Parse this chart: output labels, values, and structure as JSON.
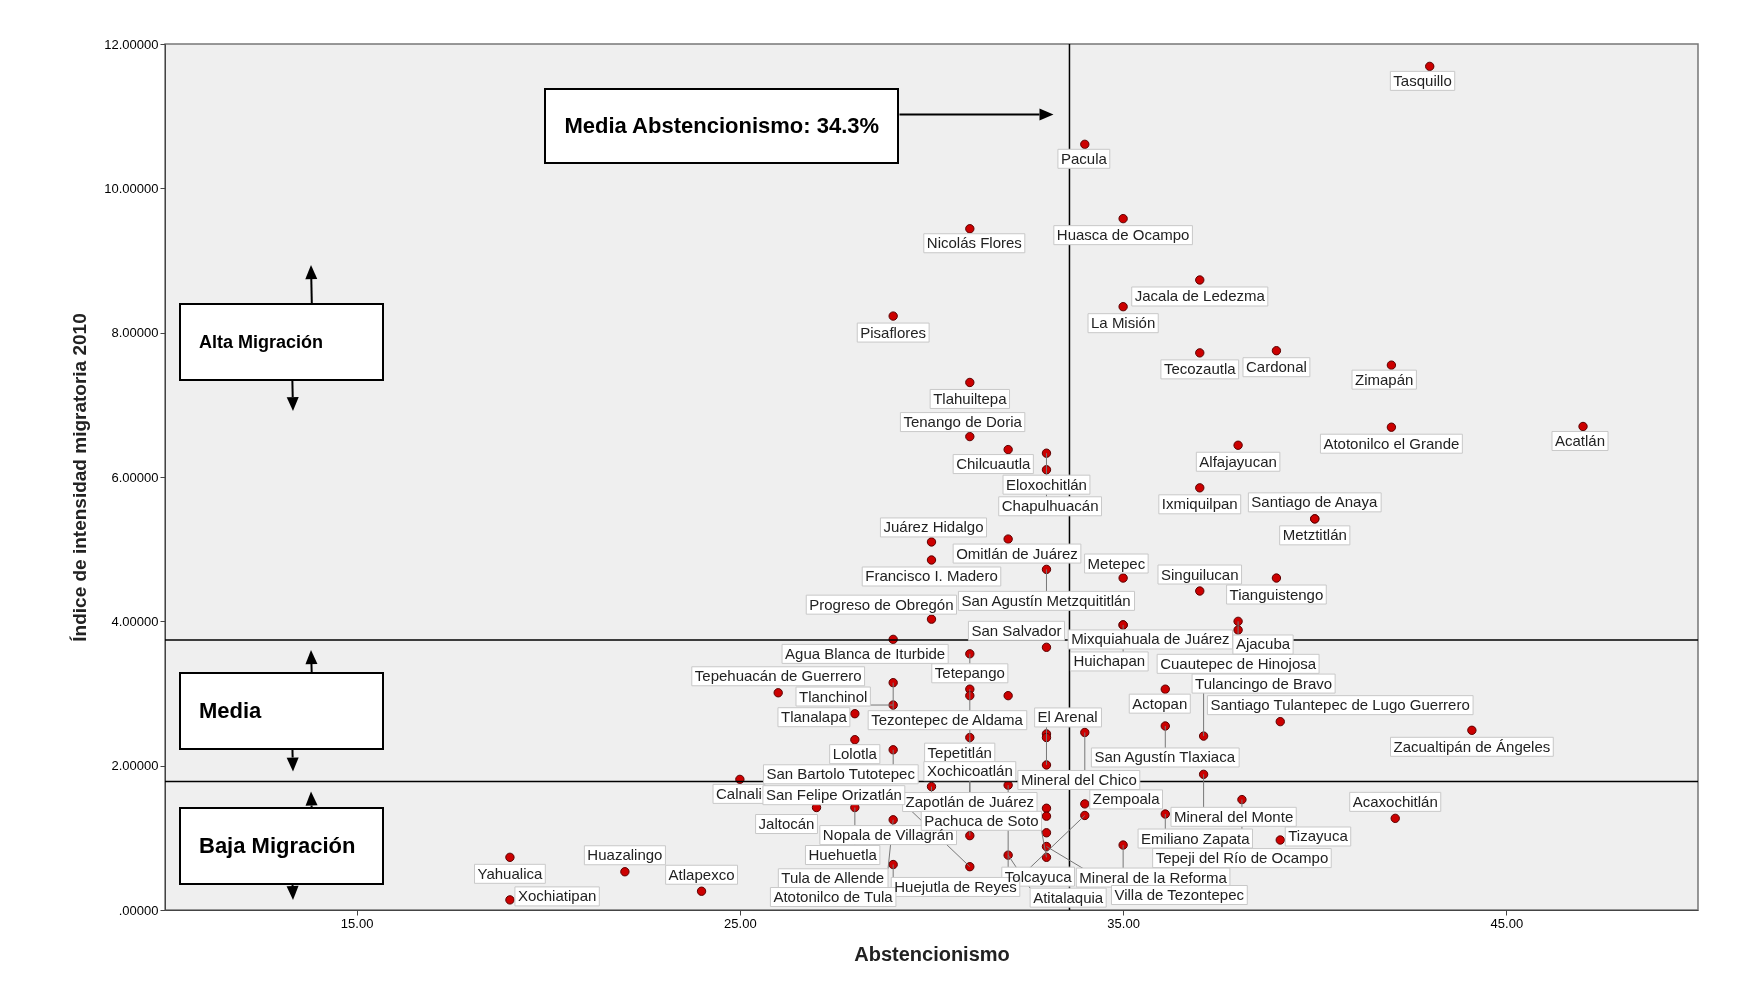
{
  "chart_data": {
    "type": "scatter",
    "xlabel": "Abstencionismo",
    "ylabel": "Índice de intensidad migratoria 2010",
    "xlim": [
      10,
      50
    ],
    "ylim": [
      0,
      12
    ],
    "marker": "circle",
    "xticks": [
      {
        "value": 15,
        "label": "15.00"
      },
      {
        "value": 25,
        "label": "25.00"
      },
      {
        "value": 35,
        "label": "35.00"
      },
      {
        "value": 45,
        "label": "45.00"
      }
    ],
    "yticks": [
      {
        "value": 0,
        "label": ".00000"
      },
      {
        "value": 2,
        "label": "2.00000"
      },
      {
        "value": 4,
        "label": "4.00000"
      },
      {
        "value": 6,
        "label": "6.00000"
      },
      {
        "value": 8,
        "label": "8.00000"
      },
      {
        "value": 10,
        "label": "10.00000"
      },
      {
        "value": 12,
        "label": "12.00000"
      }
    ],
    "series": [
      {
        "color": "#cc0000",
        "x": [
          43.0,
          34.0,
          35.0,
          31.0,
          37.0,
          35.0,
          29.0,
          37.0,
          39.0,
          42.0,
          31.0,
          47.0,
          42.0,
          31.0,
          32.0,
          33.0,
          33.0,
          38.0,
          37.0,
          40.0,
          40.0,
          32.0,
          30.0,
          30.0,
          33.0,
          35.0,
          37.0,
          39.0,
          30.0,
          35.0,
          35.0,
          38.0,
          38.0,
          29.0,
          33.0,
          31.0,
          29.0,
          31.0,
          31.0,
          32.0,
          26.0,
          29.0,
          28.0,
          28.0,
          29.0,
          31.0,
          33.0,
          33.0,
          34.0,
          36.1,
          36.1,
          33.0,
          30.0,
          32.0,
          25.0,
          37.1,
          37.1,
          39.1,
          44.1,
          34.0,
          34.0,
          36.1,
          38.1,
          39.1,
          35.0,
          42.1,
          28.0,
          27.0,
          29.0,
          31.0,
          29.0,
          32.0,
          31.0,
          33.0,
          33.0,
          33.0,
          33.0,
          33.0,
          19.0,
          19.0,
          22.0,
          24.0
        ],
        "values": [
          11.69,
          10.61,
          9.58,
          9.44,
          8.73,
          8.36,
          8.23,
          7.72,
          7.75,
          7.55,
          7.31,
          6.7,
          6.69,
          6.56,
          6.38,
          6.33,
          6.1,
          6.44,
          5.85,
          5.42,
          5.42,
          5.14,
          5.1,
          4.85,
          4.72,
          4.6,
          4.42,
          4.6,
          4.03,
          3.95,
          3.95,
          4.0,
          3.88,
          3.75,
          3.64,
          3.55,
          3.15,
          3.06,
          2.97,
          2.97,
          3.01,
          2.84,
          2.72,
          2.36,
          2.22,
          2.39,
          2.44,
          2.39,
          2.46,
          2.55,
          3.06,
          2.01,
          1.71,
          1.73,
          1.81,
          1.88,
          2.41,
          2.61,
          2.49,
          1.47,
          1.31,
          1.33,
          1.53,
          0.97,
          0.9,
          1.27,
          1.42,
          1.42,
          1.25,
          1.03,
          0.63,
          0.76,
          0.6,
          0.73,
          0.88,
          1.41,
          1.3,
          1.07,
          0.73,
          0.14,
          0.53,
          0.26
        ]
      }
    ],
    "ref_lines": [
      {
        "axis": "x",
        "value": 33.6
      },
      {
        "axis": "y",
        "value": 3.74
      },
      {
        "axis": "y",
        "value": 1.78
      }
    ],
    "annotations": [
      "Media Abstencionismo: 34.3%",
      "Alta Migración",
      "Media",
      "Baja Migración",
      {
        "text": "Tasquillo",
        "x": 43.0,
        "y": 11.69
      },
      {
        "text": "Pacula",
        "x": 34.0,
        "y": 10.61
      },
      {
        "text": "Huasca de Ocampo",
        "x": 35.0,
        "y": 9.58
      },
      {
        "text": "Nicolás Flores",
        "x": 31.0,
        "y": 9.44
      },
      {
        "text": "Jacala de Ledezma",
        "x": 37.0,
        "y": 8.73
      },
      {
        "text": "La Misión",
        "x": 35.0,
        "y": 8.36
      },
      {
        "text": "Pisaflores",
        "x": 29.0,
        "y": 8.23
      },
      {
        "text": "Tecozautla",
        "x": 37.0,
        "y": 7.72
      },
      {
        "text": "Cardonal",
        "x": 39.0,
        "y": 7.75
      },
      {
        "text": "Zimapán",
        "x": 42.0,
        "y": 7.55
      },
      {
        "text": "Tlahuiltepa",
        "x": 31.0,
        "y": 7.31
      },
      {
        "text": "Acatlán",
        "x": 47.0,
        "y": 6.7
      },
      {
        "text": "Atotonilco el Grande",
        "x": 42.0,
        "y": 6.69
      },
      {
        "text": "Tenango de Doria",
        "x": 31.0,
        "y": 6.56
      },
      {
        "text": "Eloxochitlán",
        "x": 33.0,
        "y": 6.33
      },
      {
        "text": "Chilcuautla",
        "x": 32.0,
        "y": 6.38
      },
      {
        "text": "Chapulhuacán",
        "x": 33.0,
        "y": 6.1
      },
      {
        "text": "Alfajayucan",
        "x": 38.0,
        "y": 6.44
      },
      {
        "text": "Ixmiquilpan",
        "x": 37.0,
        "y": 5.85
      },
      {
        "text": "Metztitlán",
        "x": 40.0,
        "y": 5.42
      },
      {
        "text": "Santiago de Anaya",
        "x": 40.0,
        "y": 5.42
      },
      {
        "text": "Omitlán de Juárez",
        "x": 32.0,
        "y": 5.14
      },
      {
        "text": "Juárez Hidalgo",
        "x": 30.0,
        "y": 5.1
      },
      {
        "text": "Francisco I. Madero",
        "x": 30.0,
        "y": 4.85
      },
      {
        "text": "San Agustín Metzquititlán",
        "x": 33.0,
        "y": 4.72
      },
      {
        "text": "Metepec",
        "x": 35.0,
        "y": 4.6
      },
      {
        "text": "Singuilucan",
        "x": 37.0,
        "y": 4.42
      },
      {
        "text": "Tianguistengo",
        "x": 39.0,
        "y": 4.6
      },
      {
        "text": "Progreso de Obregón",
        "x": 30.0,
        "y": 4.03
      },
      {
        "text": "Mixquiahuala de Juárez",
        "x": 35.0,
        "y": 3.95
      },
      {
        "text": "Huichapan",
        "x": 35.0,
        "y": 3.95
      },
      {
        "text": "Cuautepec de Hinojosa",
        "x": 38.0,
        "y": 4.0
      },
      {
        "text": "Ajacuba",
        "x": 38.0,
        "y": 3.88
      },
      {
        "text": "Agua Blanca de Iturbide",
        "x": 29.0,
        "y": 3.75
      },
      {
        "text": "San Salvador",
        "x": 33.0,
        "y": 3.64
      },
      {
        "text": "Tetepango",
        "x": 31.0,
        "y": 3.55
      },
      {
        "text": "Tezontepec de Aldama",
        "x": 29.0,
        "y": 3.15
      },
      {
        "text": "Tepetitlán",
        "x": 31.0,
        "y": 3.06
      },
      {
        "text": "Tepehuacán de Guerrero",
        "x": 26.0,
        "y": 3.01
      },
      {
        "text": "Tlanchinol",
        "x": 29.0,
        "y": 2.84
      },
      {
        "text": "Tlanalapa",
        "x": 28.0,
        "y": 2.72
      },
      {
        "text": "Lolotla",
        "x": 28.0,
        "y": 2.36
      },
      {
        "text": "San Bartolo Tutotepec",
        "x": 29.0,
        "y": 2.22
      },
      {
        "text": "Zapotlán de Juárez",
        "x": 31.0,
        "y": 2.39
      },
      {
        "text": "Actopan",
        "x": 36.1,
        "y": 3.06
      },
      {
        "text": "San Agustín Tlaxiaca",
        "x": 36.1,
        "y": 2.55
      },
      {
        "text": "Santiago Tulantepec de Lugo Guerrero",
        "x": 39.1,
        "y": 2.61
      },
      {
        "text": "Zacualtipán de Ángeles",
        "x": 44.1,
        "y": 2.49
      },
      {
        "text": "Tulancingo de Bravo",
        "x": 37.1,
        "y": 2.41
      },
      {
        "text": "Mineral del Chico",
        "x": 34.0,
        "y": 2.46
      },
      {
        "text": "El Arenal",
        "x": 33.0,
        "y": 2.01
      },
      {
        "text": "Tolcayuca",
        "x": 32.0,
        "y": 1.73
      },
      {
        "text": "Nopala de Villagrán",
        "x": 30.0,
        "y": 1.71
      },
      {
        "text": "Calnali",
        "x": 25.0,
        "y": 1.81
      },
      {
        "text": "Mineral del Monte",
        "x": 37.1,
        "y": 1.88
      },
      {
        "text": "Zempoala",
        "x": 34.0,
        "y": 1.47
      },
      {
        "text": "Tepeji del Río de Ocampo",
        "x": 38.1,
        "y": 1.53
      },
      {
        "text": "Emiliano Zapata",
        "x": 36.1,
        "y": 1.33
      },
      {
        "text": "Tizayuca",
        "x": 39.1,
        "y": 0.97
      },
      {
        "text": "Acaxochitlán",
        "x": 42.1,
        "y": 1.27
      },
      {
        "text": "Mineral de la Reforma",
        "x": 35.0,
        "y": 0.9
      },
      {
        "text": "Huejutla de Reyes",
        "x": 34.0,
        "y": 1.31
      },
      {
        "text": "Huehuetla",
        "x": 28.0,
        "y": 1.42
      },
      {
        "text": "Jaltocán",
        "x": 27.0,
        "y": 1.42
      },
      {
        "text": "Tula de Allende",
        "x": 29.0,
        "y": 1.25
      },
      {
        "text": "Xochicoatlán",
        "x": 31.0,
        "y": 1.03
      },
      {
        "text": "Atitalaquia",
        "x": 32.0,
        "y": 0.76
      },
      {
        "text": "Atotonilco de Tula",
        "x": 29.0,
        "y": 0.63
      },
      {
        "text": "Villa de Tezontepec",
        "x": 33.0,
        "y": 0.88
      },
      {
        "text": "Pachuca de Soto",
        "x": 33.0,
        "y": 0.73
      },
      {
        "text": "San Felipe Orizatlán",
        "x": 31.0,
        "y": 0.6
      },
      {
        "text": "Yahualica",
        "x": 19.0,
        "y": 0.73
      },
      {
        "text": "Xochiatipan",
        "x": 19.0,
        "y": 0.14
      },
      {
        "text": "Huazalingo",
        "x": 22.0,
        "y": 0.53
      },
      {
        "text": "Atlapexco",
        "x": 24.0,
        "y": 0.26
      }
    ]
  }
}
